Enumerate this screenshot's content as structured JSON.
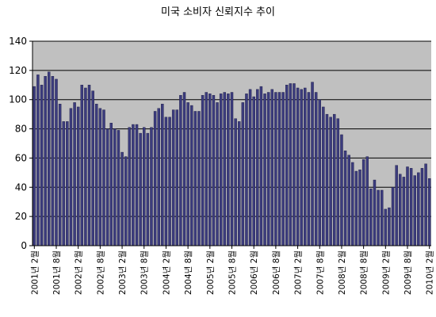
{
  "chart_data": {
    "type": "bar",
    "title": "미국 소비자 신뢰지수 추이",
    "xlabel": "",
    "ylabel": "",
    "ylim": [
      0,
      140
    ],
    "yticks": [
      0,
      20,
      40,
      60,
      80,
      100,
      120,
      140
    ],
    "grid": true,
    "legend": "none",
    "colors": {
      "bar_fill": "#3c3c7e",
      "bar_edge": "#1a1a40",
      "plot_bg": "#c0c0c0",
      "gridline": "#000000"
    },
    "x_tick_labels": [
      "2001년 2월",
      "2001년 8월",
      "2002년 2월",
      "2002년 8월",
      "2003년 2월",
      "2003년 8월",
      "2004년 2월",
      "2004년 8월",
      "2005년 2월",
      "2005년 8월",
      "2006년 2월",
      "2006년 8월",
      "2007년 2월",
      "2007년 8월",
      "2008년 2월",
      "2008년 8월",
      "2009년 2월",
      "2009년 8월",
      "2010년 2월"
    ],
    "categories": [
      "2001-02",
      "2001-03",
      "2001-04",
      "2001-05",
      "2001-06",
      "2001-07",
      "2001-08",
      "2001-09",
      "2001-10",
      "2001-11",
      "2001-12",
      "2002-01",
      "2002-02",
      "2002-03",
      "2002-04",
      "2002-05",
      "2002-06",
      "2002-07",
      "2002-08",
      "2002-09",
      "2002-10",
      "2002-11",
      "2002-12",
      "2003-01",
      "2003-02",
      "2003-03",
      "2003-04",
      "2003-05",
      "2003-06",
      "2003-07",
      "2003-08",
      "2003-09",
      "2003-10",
      "2003-11",
      "2003-12",
      "2004-01",
      "2004-02",
      "2004-03",
      "2004-04",
      "2004-05",
      "2004-06",
      "2004-07",
      "2004-08",
      "2004-09",
      "2004-10",
      "2004-11",
      "2004-12",
      "2005-01",
      "2005-02",
      "2005-03",
      "2005-04",
      "2005-05",
      "2005-06",
      "2005-07",
      "2005-08",
      "2005-09",
      "2005-10",
      "2005-11",
      "2005-12",
      "2006-01",
      "2006-02",
      "2006-03",
      "2006-04",
      "2006-05",
      "2006-06",
      "2006-07",
      "2006-08",
      "2006-09",
      "2006-10",
      "2006-11",
      "2006-12",
      "2007-01",
      "2007-02",
      "2007-03",
      "2007-04",
      "2007-05",
      "2007-06",
      "2007-07",
      "2007-08",
      "2007-09",
      "2007-10",
      "2007-11",
      "2007-12",
      "2008-01",
      "2008-02",
      "2008-03",
      "2008-04",
      "2008-05",
      "2008-06",
      "2008-07",
      "2008-08",
      "2008-09",
      "2008-10",
      "2008-11",
      "2008-12",
      "2009-01",
      "2009-02",
      "2009-03",
      "2009-04",
      "2009-05",
      "2009-06",
      "2009-07",
      "2009-08",
      "2009-09",
      "2009-10",
      "2009-11",
      "2009-12",
      "2010-01",
      "2010-02"
    ],
    "values": [
      109,
      117,
      110,
      116,
      119,
      116,
      114,
      97,
      85,
      85,
      94,
      98,
      95,
      110,
      108,
      110,
      106,
      97,
      94,
      93,
      80,
      84,
      80,
      79,
      64,
      61,
      81,
      83,
      83,
      77,
      81,
      77,
      81,
      92,
      94,
      97,
      88,
      88,
      93,
      93,
      103,
      105,
      98,
      96,
      92,
      92,
      103,
      105,
      104,
      103,
      98,
      104,
      105,
      104,
      105,
      87,
      85,
      98,
      104,
      107,
      102,
      107,
      109,
      104,
      105,
      107,
      105,
      105,
      105,
      110,
      111,
      111,
      108,
      107,
      108,
      105,
      112,
      105,
      100,
      95,
      90,
      88,
      90,
      87,
      76,
      65,
      62,
      57,
      51,
      52,
      59,
      61,
      39,
      45,
      38,
      38,
      25,
      26,
      40,
      55,
      49,
      47,
      54,
      53,
      48,
      50,
      53,
      56,
      46
    ]
  }
}
